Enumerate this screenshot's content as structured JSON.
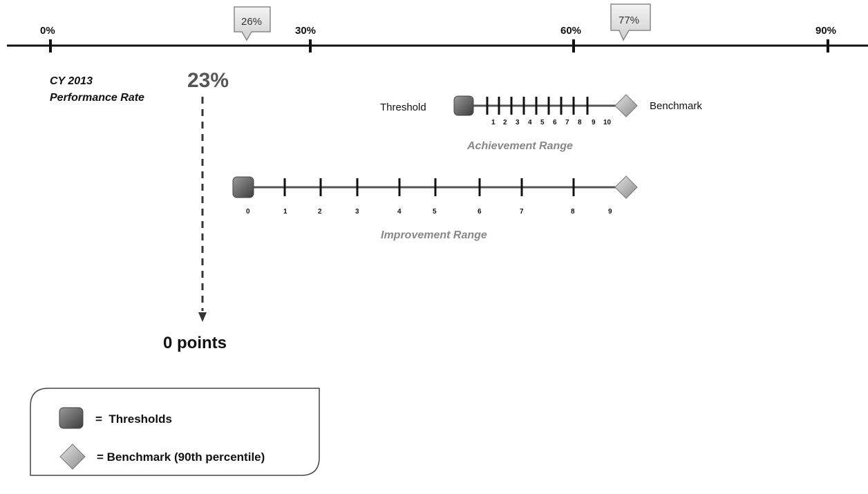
{
  "scale": {
    "ticks": [
      "0%",
      "30%",
      "60%",
      "90%"
    ],
    "callouts": [
      "26%",
      "77%"
    ]
  },
  "performance": {
    "label_line1": "CY 2013",
    "label_line2": "Performance Rate",
    "value": "23%",
    "result": "0 points"
  },
  "achievement": {
    "threshold_label": "Threshold",
    "benchmark_label": "Benchmark",
    "ticks": [
      "1",
      "2",
      "3",
      "4",
      "5",
      "6",
      "7",
      "8",
      "9",
      "10"
    ],
    "range_label": "Achievement Range"
  },
  "improvement": {
    "ticks": [
      "0",
      "1",
      "2",
      "3",
      "4",
      "5",
      "6",
      "7",
      "8",
      "9"
    ],
    "range_label": "Improvement Range"
  },
  "legend": {
    "threshold_text": "=  Thresholds",
    "benchmark_text": "= Benchmark (90th percentile)"
  }
}
